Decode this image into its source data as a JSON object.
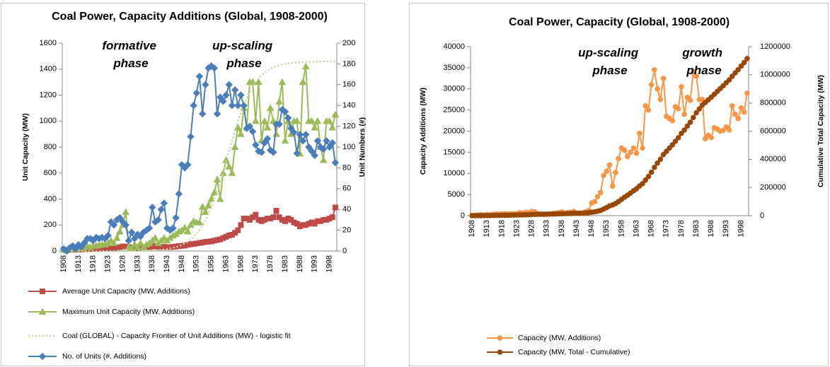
{
  "chart_data": [
    {
      "type": "line",
      "title": "Coal Power, Capacity Additions (Global, 1908-2000)",
      "ylabel": "Unit Capacity (MW)",
      "y2label": "Unit Numbers (#)",
      "categories": [
        "1908",
        null,
        null,
        null,
        null,
        "1913",
        null,
        null,
        null,
        null,
        "1918",
        null,
        null,
        null,
        null,
        "1923",
        null,
        null,
        null,
        null,
        "1928",
        null,
        null,
        null,
        null,
        "1933",
        null,
        null,
        null,
        null,
        "1938",
        null,
        null,
        null,
        null,
        "1943",
        null,
        null,
        null,
        null,
        "1948",
        null,
        null,
        null,
        null,
        "1953",
        null,
        null,
        null,
        null,
        "1958",
        null,
        null,
        null,
        null,
        "1963",
        null,
        null,
        null,
        null,
        "1968",
        null,
        null,
        null,
        null,
        "1973",
        null,
        null,
        null,
        null,
        "1978",
        null,
        null,
        null,
        null,
        "1983",
        null,
        null,
        null,
        null,
        "1988",
        null,
        null,
        null,
        null,
        "1993",
        null,
        null,
        null,
        null,
        "1998",
        null,
        null
      ],
      "ylim": [
        0,
        1600
      ],
      "yticks": [
        0,
        200,
        400,
        600,
        800,
        1000,
        1200,
        1400,
        1600
      ],
      "y2lim": [
        0,
        200
      ],
      "y2ticks": [
        0,
        20,
        40,
        60,
        80,
        100,
        120,
        140,
        160,
        180,
        200
      ],
      "annotations": [
        "formative phase",
        "up-scaling phase"
      ],
      "series": [
        {
          "name": "Average Unit Capacity (MW, Additions)",
          "color": "#be4b48",
          "marker": "square",
          "values": [
            10,
            5,
            10,
            12,
            10,
            12,
            12,
            15,
            15,
            15,
            18,
            18,
            18,
            20,
            20,
            22,
            25,
            25,
            28,
            30,
            35,
            35,
            30,
            25,
            25,
            25,
            28,
            28,
            30,
            30,
            35,
            35,
            30,
            30,
            32,
            30,
            30,
            32,
            35,
            38,
            40,
            42,
            48,
            52,
            55,
            58,
            62,
            65,
            70,
            72,
            75,
            80,
            85,
            90,
            100,
            110,
            120,
            125,
            140,
            160,
            200,
            250,
            250,
            240,
            260,
            280,
            240,
            230,
            240,
            250,
            250,
            260,
            310,
            260,
            240,
            230,
            250,
            240,
            220,
            210,
            190,
            200,
            200,
            210,
            220,
            210,
            230,
            230,
            240,
            240,
            250,
            260,
            335
          ]
        },
        {
          "name": "Maximum Unit Capacity (MW, Additions)",
          "color": "#9bbb59",
          "marker": "triangle",
          "values": [
            10,
            5,
            15,
            20,
            15,
            25,
            20,
            30,
            35,
            30,
            40,
            40,
            45,
            50,
            50,
            60,
            80,
            60,
            100,
            150,
            200,
            300,
            30,
            20,
            50,
            30,
            60,
            30,
            50,
            60,
            80,
            100,
            60,
            80,
            100,
            80,
            100,
            120,
            130,
            150,
            160,
            180,
            150,
            200,
            230,
            220,
            220,
            340,
            300,
            350,
            400,
            450,
            550,
            400,
            600,
            700,
            650,
            600,
            800,
            950,
            900,
            1100,
            950,
            1300,
            1300,
            1000,
            1300,
            850,
            1000,
            950,
            1100,
            1000,
            900,
            1150,
            1300,
            850,
            1000,
            900,
            1000,
            1000,
            750,
            1300,
            1420,
            1000,
            1000,
            950,
            1000,
            800,
            700,
            1000,
            1000,
            950,
            1050
          ]
        },
        {
          "name": "Coal (GLOBAL) - Capacity Frontier of Unit Additions (MW) - logistic fit",
          "color": "#c3d69b",
          "marker": "none",
          "dash": true,
          "values": [
            0,
            0,
            0,
            0,
            0,
            0,
            0,
            0,
            0,
            0,
            0,
            0,
            0,
            0,
            0,
            0,
            0,
            0,
            0,
            0,
            0,
            0,
            1,
            1,
            1,
            2,
            2,
            3,
            3,
            4,
            5,
            7,
            8,
            10,
            13,
            16,
            20,
            25,
            30,
            38,
            47,
            58,
            71,
            88,
            108,
            131,
            161,
            195,
            235,
            282,
            335,
            396,
            462,
            534,
            611,
            689,
            770,
            849,
            926,
            998,
            1064,
            1125,
            1178,
            1225,
            1265,
            1299,
            1328,
            1352,
            1372,
            1389,
            1402,
            1413,
            1422,
            1430,
            1435,
            1440,
            1444,
            1447,
            1450,
            1452,
            1453,
            1455,
            1456,
            1457,
            1457,
            1458,
            1458,
            1458,
            1459,
            1459,
            1459,
            1459,
            1459
          ]
        },
        {
          "name": "No. of Units (#, Additions)",
          "color": "#4a7ebb",
          "marker": "diamond",
          "axis": "y2",
          "values": [
            2,
            0,
            3,
            5,
            2,
            6,
            4,
            8,
            12,
            12,
            10,
            13,
            12,
            13,
            12,
            15,
            28,
            25,
            30,
            32,
            28,
            25,
            10,
            18,
            12,
            16,
            14,
            18,
            20,
            22,
            42,
            28,
            30,
            40,
            46,
            22,
            20,
            22,
            32,
            55,
            83,
            80,
            83,
            110,
            140,
            152,
            168,
            132,
            160,
            176,
            178,
            176,
            132,
            148,
            144,
            150,
            160,
            140,
            155,
            140,
            150,
            140,
            118,
            120,
            115,
            102,
            96,
            95,
            104,
            108,
            97,
            95,
            122,
            122,
            136,
            134,
            128,
            118,
            114,
            94,
            112,
            106,
            112,
            100,
            96,
            92,
            106,
            100,
            98,
            106,
            100,
            104,
            85
          ]
        }
      ]
    },
    {
      "type": "line",
      "title": "Coal Power, Capacity (Global, 1908-2000)",
      "ylabel": "Capacity Additions (MW)",
      "y2label": "Cumulative Total Capacity (MW)",
      "categories": [
        "1908",
        null,
        null,
        null,
        null,
        "1913",
        null,
        null,
        null,
        null,
        "1918",
        null,
        null,
        null,
        null,
        "1923",
        null,
        null,
        null,
        null,
        "1928",
        null,
        null,
        null,
        null,
        "1933",
        null,
        null,
        null,
        null,
        "1938",
        null,
        null,
        null,
        null,
        "1943",
        null,
        null,
        null,
        null,
        "1948",
        null,
        null,
        null,
        null,
        "1953",
        null,
        null,
        null,
        null,
        "1958",
        null,
        null,
        null,
        null,
        "1963",
        null,
        null,
        null,
        null,
        "1968",
        null,
        null,
        null,
        null,
        "1973",
        null,
        null,
        null,
        null,
        "1978",
        null,
        null,
        null,
        null,
        "1983",
        null,
        null,
        null,
        null,
        "1988",
        null,
        null,
        null,
        null,
        "1993",
        null,
        null,
        null,
        null,
        "1998",
        null,
        null
      ],
      "ylim": [
        0,
        40000
      ],
      "yticks": [
        0,
        5000,
        10000,
        15000,
        20000,
        25000,
        30000,
        35000,
        40000
      ],
      "y2lim": [
        0,
        1200000
      ],
      "y2ticks": [
        0,
        200000,
        400000,
        600000,
        800000,
        1000000,
        1200000
      ],
      "annotations": [
        "up-scaling phase",
        "growth phase"
      ],
      "series": [
        {
          "name": "Capacity (MW, Additions)",
          "color": "#f79646",
          "marker": "circle",
          "values": [
            50,
            100,
            150,
            200,
            150,
            250,
            200,
            300,
            400,
            350,
            400,
            450,
            350,
            400,
            450,
            500,
            700,
            600,
            800,
            700,
            1000,
            900,
            500,
            400,
            300,
            350,
            400,
            500,
            600,
            700,
            900,
            600,
            700,
            800,
            1000,
            600,
            500,
            600,
            900,
            1200,
            3000,
            3300,
            4500,
            5500,
            9500,
            10500,
            12000,
            7000,
            10200,
            13500,
            16000,
            15500,
            14000,
            15000,
            16000,
            14800,
            19500,
            16000,
            26000,
            25000,
            31000,
            34500,
            30000,
            27500,
            32500,
            23500,
            23000,
            22500,
            25800,
            25300,
            30500,
            24000,
            28000,
            27300,
            34000,
            33000,
            27500,
            27500,
            18200,
            19000,
            18500,
            20800,
            20500,
            20000,
            20200,
            21000,
            20300,
            26000,
            24000,
            23000,
            25500,
            24500,
            29000
          ]
        },
        {
          "name": "Capacity (MW, Total - Cumulative)",
          "color": "#984807",
          "marker": "circle",
          "axis": "y2",
          "values": [
            50,
            150,
            300,
            500,
            650,
            900,
            1100,
            1400,
            1800,
            2150,
            2550,
            3000,
            3350,
            3750,
            4200,
            4700,
            5400,
            6000,
            6800,
            7500,
            8500,
            9400,
            9900,
            10300,
            10600,
            10950,
            11350,
            11850,
            12450,
            13150,
            14050,
            14650,
            15350,
            16150,
            17150,
            17750,
            18250,
            18850,
            19750,
            20950,
            23950,
            27250,
            31750,
            37250,
            46750,
            57250,
            69250,
            76250,
            86450,
            99950,
            115950,
            131450,
            145450,
            160450,
            176450,
            191250,
            210750,
            226750,
            252750,
            277750,
            308750,
            343250,
            373250,
            400750,
            433250,
            456750,
            479750,
            502250,
            528050,
            553350,
            583850,
            607850,
            635850,
            663150,
            697150,
            730150,
            757650,
            785150,
            803350,
            822350,
            840850,
            861650,
            882150,
            902150,
            922350,
            943350,
            963650,
            989650,
            1013650,
            1036650,
            1062150,
            1086650,
            1115650
          ]
        }
      ]
    }
  ]
}
